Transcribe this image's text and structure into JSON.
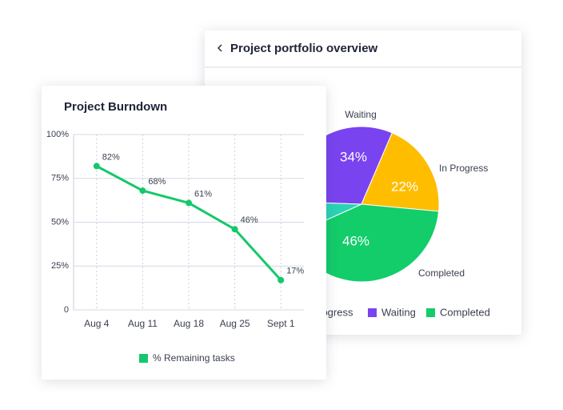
{
  "chart_data": [
    {
      "type": "pie",
      "title": "Project portfolio overview",
      "categories": [
        null,
        "In Progress",
        "Waiting",
        "Completed"
      ],
      "values": [
        8,
        22,
        34,
        46
      ],
      "value_labels": [
        null,
        "22%",
        "34%",
        "46%"
      ],
      "colors": [
        "#2bd3b5",
        "#ffbd00",
        "#7a43f0",
        "#12cd6a"
      ]
    },
    {
      "type": "line",
      "title": "Project Burndown",
      "categories": [
        "Aug 4",
        "Aug 11",
        "Aug 18",
        "Aug 25",
        "Sept 1"
      ],
      "series": [
        {
          "name": "% Remaining tasks",
          "color": "#14c86a",
          "values": [
            82,
            68,
            61,
            46,
            17
          ],
          "value_labels": [
            "82%",
            "68%",
            "61%",
            "46%",
            "17%"
          ]
        }
      ],
      "ylim": [
        0,
        100
      ],
      "yticks": [
        0,
        {
          "value": 25,
          "label": "25%"
        },
        {
          "value": 50,
          "label": "50%"
        },
        {
          "value": 75,
          "label": "75%"
        },
        {
          "value": 100,
          "label": "100%"
        }
      ],
      "grid": true
    }
  ]
}
